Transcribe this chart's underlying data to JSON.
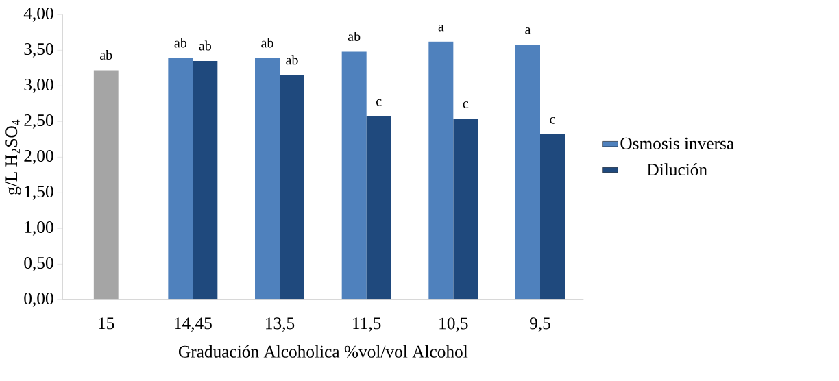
{
  "chart_data": {
    "type": "bar",
    "categories": [
      "15",
      "14,45",
      "13,5",
      "11,5",
      "10,5",
      "9,5"
    ],
    "xlabel": "Graduación Alcoholica %vol/vol Alcohol",
    "ylabel": "g/L H$_{2}$SO$_{4}$",
    "ylim": [
      0,
      4
    ],
    "yticks": [
      {
        "value": 0,
        "label": "0,00"
      },
      {
        "value": 0.5,
        "label": "0,50"
      },
      {
        "value": 1,
        "label": "1,00"
      },
      {
        "value": 1.5,
        "label": "1,50"
      },
      {
        "value": 2,
        "label": "2,00"
      },
      {
        "value": 2.5,
        "label": "2,50"
      },
      {
        "value": 3,
        "label": "3,00"
      },
      {
        "value": 3.5,
        "label": "3,50"
      },
      {
        "value": 4,
        "label": "4,00"
      }
    ],
    "legend": "right",
    "grid": false,
    "series": [
      {
        "color": "#a5a5a5",
        "values": [
          3.22,
          null,
          null,
          null,
          null,
          null
        ],
        "value_labels": [
          "ab",
          null,
          null,
          null,
          null,
          null
        ]
      },
      {
        "name": "Osmosis inversa",
        "color": "#4f81bd",
        "values": [
          null,
          3.39,
          3.39,
          3.48,
          3.62,
          3.58
        ],
        "value_labels": [
          null,
          "ab",
          "ab",
          "ab",
          "a",
          "a"
        ]
      },
      {
        "name": "Dilución",
        "color": "#1f497d",
        "values": [
          null,
          3.35,
          3.15,
          2.57,
          2.54,
          2.32
        ],
        "value_labels": [
          null,
          "ab",
          "ab",
          "c",
          "c",
          "c"
        ]
      }
    ]
  }
}
